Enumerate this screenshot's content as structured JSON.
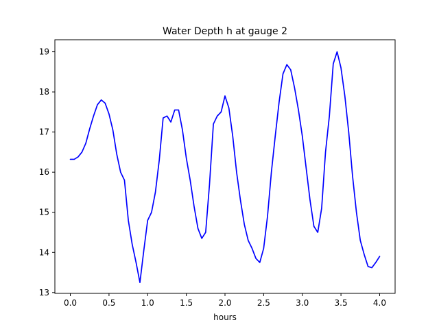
{
  "chart_data": {
    "type": "line",
    "title": "Water Depth h at gauge 2",
    "xlabel": "hours",
    "ylabel": "",
    "xlim": [
      -0.2,
      4.2
    ],
    "ylim": [
      12.98,
      19.3
    ],
    "xticks": [
      0.0,
      0.5,
      1.0,
      1.5,
      2.0,
      2.5,
      3.0,
      3.5,
      4.0
    ],
    "xtick_labels": [
      "0.0",
      "0.5",
      "1.0",
      "1.5",
      "2.0",
      "2.5",
      "3.0",
      "3.5",
      "4.0"
    ],
    "yticks": [
      13,
      14,
      15,
      16,
      17,
      18,
      19
    ],
    "ytick_labels": [
      "13",
      "14",
      "15",
      "16",
      "17",
      "18",
      "19"
    ],
    "grid": false,
    "series": [
      {
        "color": "#0000ff",
        "x": [
          0.0,
          0.05,
          0.1,
          0.15,
          0.2,
          0.25,
          0.3,
          0.35,
          0.4,
          0.45,
          0.5,
          0.55,
          0.6,
          0.65,
          0.7,
          0.75,
          0.8,
          0.85,
          0.9,
          0.95,
          1.0,
          1.05,
          1.1,
          1.15,
          1.2,
          1.25,
          1.3,
          1.35,
          1.4,
          1.45,
          1.5,
          1.55,
          1.6,
          1.65,
          1.7,
          1.75,
          1.8,
          1.85,
          1.9,
          1.95,
          2.0,
          2.05,
          2.1,
          2.15,
          2.2,
          2.25,
          2.3,
          2.35,
          2.4,
          2.45,
          2.5,
          2.55,
          2.6,
          2.65,
          2.7,
          2.75,
          2.8,
          2.85,
          2.9,
          2.95,
          3.0,
          3.05,
          3.1,
          3.15,
          3.2,
          3.25,
          3.3,
          3.35,
          3.4,
          3.45,
          3.5,
          3.55,
          3.6,
          3.65,
          3.7,
          3.75,
          3.8,
          3.85,
          3.9,
          3.95,
          4.0
        ],
        "values": [
          16.32,
          16.32,
          16.38,
          16.5,
          16.72,
          17.08,
          17.4,
          17.68,
          17.8,
          17.72,
          17.45,
          17.05,
          16.45,
          16.0,
          15.8,
          14.8,
          14.2,
          13.75,
          13.25,
          14.05,
          14.8,
          15.0,
          15.5,
          16.3,
          17.35,
          17.4,
          17.25,
          17.55,
          17.55,
          17.05,
          16.35,
          15.8,
          15.15,
          14.6,
          14.35,
          14.5,
          15.7,
          17.2,
          17.4,
          17.5,
          17.9,
          17.6,
          16.9,
          16.0,
          15.3,
          14.7,
          14.3,
          14.1,
          13.85,
          13.75,
          14.1,
          14.9,
          16.0,
          16.9,
          17.75,
          18.45,
          18.68,
          18.55,
          18.1,
          17.55,
          16.9,
          16.1,
          15.3,
          14.65,
          14.5,
          15.1,
          16.5,
          17.4,
          18.7,
          19.0,
          18.6,
          17.9,
          17.0,
          15.9,
          15.0,
          14.3,
          13.95,
          13.65,
          13.62,
          13.75,
          13.9
        ]
      }
    ]
  }
}
